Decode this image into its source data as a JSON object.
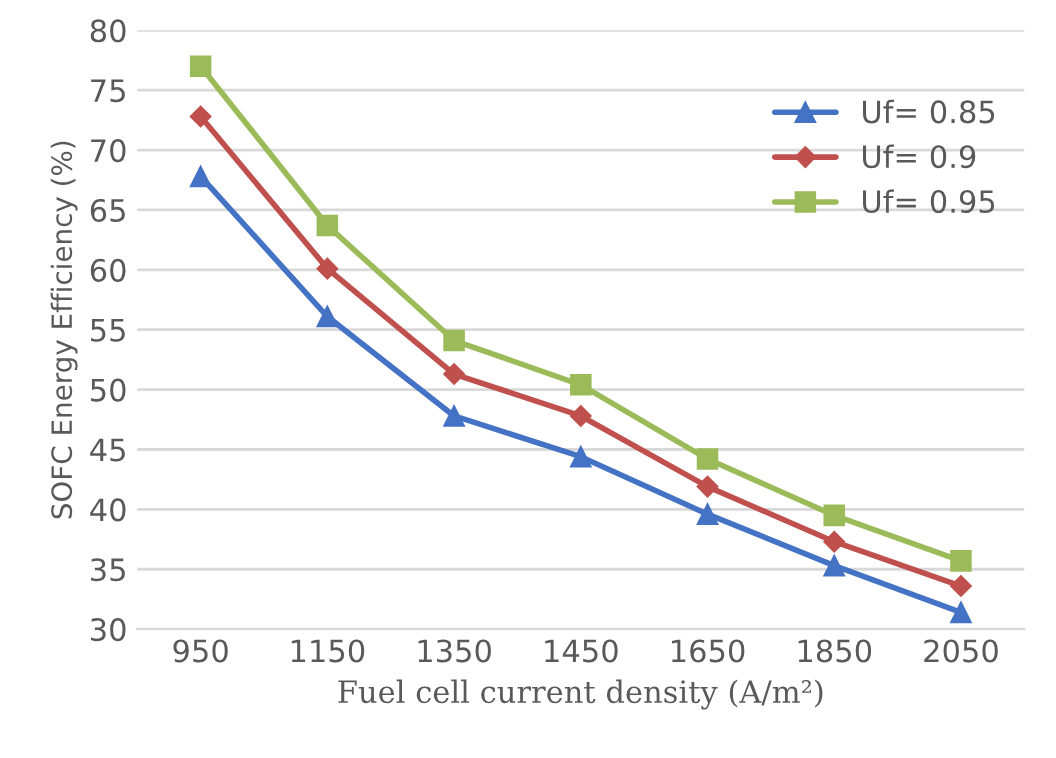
{
  "chart_data": {
    "type": "line",
    "xlabel": "Fuel cell current density (A/m²)",
    "ylabel": "SOFC Energy Efficiency (%)",
    "categories": [
      "950",
      "1150",
      "1350",
      "1450",
      "1650",
      "1850",
      "2050"
    ],
    "series": [
      {
        "name": "Uf= 0.85",
        "color": "#4472c4",
        "marker": "triangle",
        "values": [
          67.8,
          56.1,
          47.8,
          44.4,
          39.6,
          35.3,
          31.4
        ]
      },
      {
        "name": "Uf= 0.9",
        "color": "#c0504d",
        "marker": "diamond",
        "values": [
          72.8,
          60.1,
          51.3,
          47.8,
          41.9,
          37.3,
          33.6
        ]
      },
      {
        "name": "Uf= 0.95",
        "color": "#9bbb59",
        "marker": "square",
        "values": [
          77.0,
          63.7,
          54.1,
          50.4,
          44.2,
          39.5,
          35.7
        ]
      }
    ],
    "ylim": [
      30,
      80
    ],
    "yticks": [
      30,
      35,
      40,
      45,
      50,
      55,
      60,
      65,
      70,
      75,
      80
    ],
    "grid": "y",
    "legend": "top right"
  }
}
